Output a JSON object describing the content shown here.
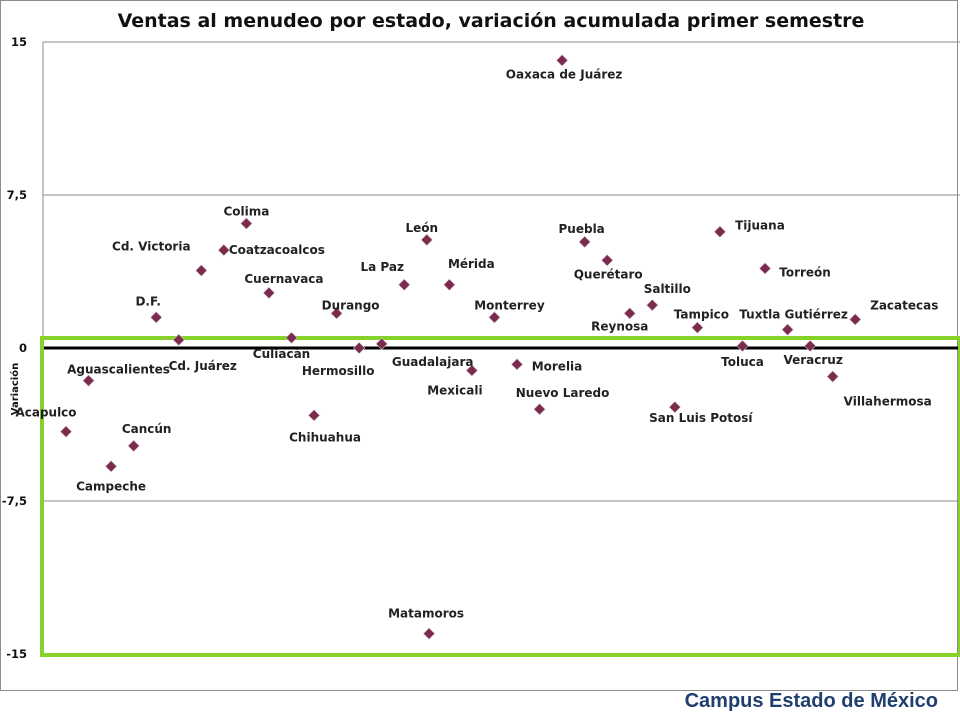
{
  "footer": {
    "brand": "Campus Estado de México"
  },
  "colors": {
    "marker": "#7b2b4e",
    "highlight_box": "#86d22b",
    "grid": "#8c8c8c",
    "zero_line": "#000000"
  },
  "chart_data": {
    "type": "scatter",
    "title": "Ventas al menudeo por estado, variación acumulada primer semestre",
    "xlabel": "",
    "ylabel": "Variación",
    "ylim": [
      -15,
      15
    ],
    "yticks": [
      "15",
      "7,5",
      "0",
      "-7,5",
      "-15"
    ],
    "grid": true,
    "legend": "none",
    "points": [
      {
        "name": "Acapulco",
        "x": 1,
        "y": -4.1
      },
      {
        "name": "Aguascalientes",
        "x": 2,
        "y": -1.6
      },
      {
        "name": "Campeche",
        "x": 3,
        "y": -5.8
      },
      {
        "name": "Cancún",
        "x": 4,
        "y": -4.8
      },
      {
        "name": "D.F.",
        "x": 5,
        "y": 1.5
      },
      {
        "name": "Cd. Juárez",
        "x": 6,
        "y": 0.4
      },
      {
        "name": "Cd. Victoria",
        "x": 7,
        "y": 3.8
      },
      {
        "name": "Coatzacoalcos",
        "x": 8,
        "y": 4.8
      },
      {
        "name": "Colima",
        "x": 9,
        "y": 6.1
      },
      {
        "name": "Cuernavaca",
        "x": 10,
        "y": 2.7
      },
      {
        "name": "Culiacán",
        "x": 11,
        "y": 0.5
      },
      {
        "name": "Chihuahua",
        "x": 12,
        "y": -3.3
      },
      {
        "name": "Durango",
        "x": 13,
        "y": 1.7
      },
      {
        "name": "Hermosillo",
        "x": 14,
        "y": 0.0
      },
      {
        "name": "Guadalajara",
        "x": 15,
        "y": 0.2
      },
      {
        "name": "La Paz",
        "x": 16,
        "y": 3.1
      },
      {
        "name": "León",
        "x": 17,
        "y": 5.3
      },
      {
        "name": "Mérida",
        "x": 18,
        "y": 3.1
      },
      {
        "name": "Mexicali",
        "x": 19,
        "y": -1.1
      },
      {
        "name": "Monterrey",
        "x": 20,
        "y": 1.5
      },
      {
        "name": "Morelia",
        "x": 21,
        "y": -0.8
      },
      {
        "name": "Nuevo Laredo",
        "x": 22,
        "y": -3.0
      },
      {
        "name": "Oaxaca de Juárez",
        "x": 23,
        "y": 14.1
      },
      {
        "name": "Matamoros",
        "x": 17.1,
        "y": -14.0
      },
      {
        "name": "Puebla",
        "x": 24,
        "y": 5.2
      },
      {
        "name": "Querétaro",
        "x": 25,
        "y": 4.3
      },
      {
        "name": "Reynosa",
        "x": 26,
        "y": 1.7
      },
      {
        "name": "Saltillo",
        "x": 27,
        "y": 2.1
      },
      {
        "name": "San Luis Potosí",
        "x": 28,
        "y": -2.9
      },
      {
        "name": "Tampico",
        "x": 29,
        "y": 1.0
      },
      {
        "name": "Tijuana",
        "x": 30,
        "y": 5.7
      },
      {
        "name": "Toluca",
        "x": 31,
        "y": 0.1
      },
      {
        "name": "Torreón",
        "x": 32,
        "y": 3.9
      },
      {
        "name": "Tuxtla Gutiérrez",
        "x": 33,
        "y": 0.9
      },
      {
        "name": "Veracruz",
        "x": 34,
        "y": 0.1
      },
      {
        "name": "Villahermosa",
        "x": 35,
        "y": -1.4
      },
      {
        "name": "Zacatecas",
        "x": 36,
        "y": 1.4
      }
    ]
  }
}
